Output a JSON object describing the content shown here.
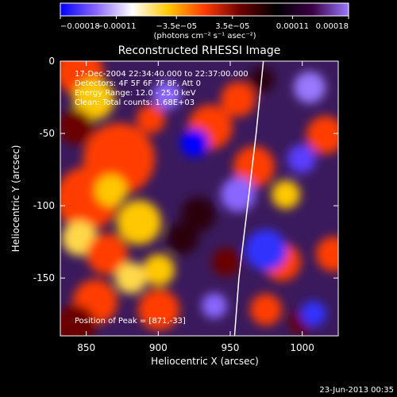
{
  "chart_data": {
    "type": "heatmap",
    "title": "Reconstructed RHESSI Image",
    "xlabel": "Heliocentric X (arcsec)",
    "ylabel": "Heliocentric Y (arcsec)",
    "xlim": [
      832,
      1025
    ],
    "ylim": [
      -190,
      0
    ],
    "x_ticks": [
      850,
      900,
      950,
      1000
    ],
    "y_ticks": [
      0,
      -50,
      -100,
      -150
    ],
    "colorbar": {
      "unit_label": "(photons cm⁻² s⁻¹ asec⁻²)",
      "range": [
        -0.00018,
        0.00018
      ],
      "tick_values": [
        -0.00018,
        -0.00011,
        -3.5e-05,
        3.5e-05,
        0.00011,
        0.00018
      ],
      "tick_labels": [
        "−0.00018",
        "−0.00011",
        "−3.5e−05",
        "3.5e−05",
        "0.00011",
        "0.00018"
      ],
      "colormap": [
        "#0000ff",
        "#8a66ff",
        "#ffffff",
        "#ffc800",
        "#ff3c00",
        "#6b0000",
        "#000000",
        "#3c0046",
        "#9a78ff"
      ]
    },
    "annotations": [
      "17-Dec-2004 22:34:40.000 to 22:37:00.000",
      "Detectors: 4F 5F 6F 7F 8F, Att 0",
      "Energy Range: 12.0 - 25.0 keV",
      "Clean: Total counts: 1.68E+03",
      "Position of Peak = [871,-33]"
    ],
    "limb_curve": [
      [
        973,
        0
      ],
      [
        968,
        -50
      ],
      [
        962,
        -100
      ],
      [
        956,
        -150
      ],
      [
        953,
        -190
      ]
    ],
    "grid": false,
    "legend": "none",
    "timestamp": "23-Jun-2013 00:35"
  }
}
